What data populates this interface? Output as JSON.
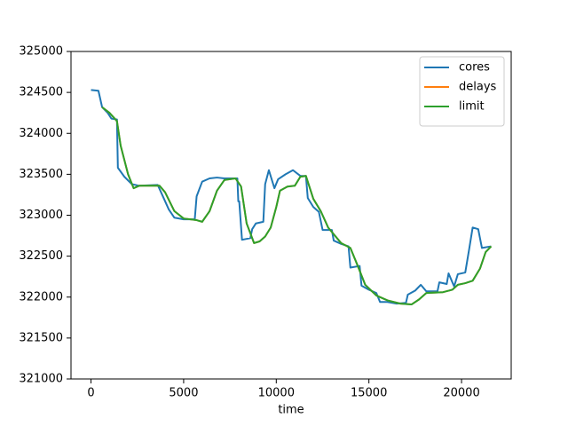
{
  "chart_data": {
    "type": "line",
    "xlabel": "time",
    "xlim": [
      -1080,
      22680
    ],
    "xticks": [
      0,
      5000,
      10000,
      15000,
      20000
    ],
    "ylim": [
      321000,
      325000
    ],
    "yticks": [
      321000,
      321500,
      322000,
      322500,
      323000,
      323500,
      324000,
      324500,
      325000
    ],
    "legend": "upper right",
    "series": [
      {
        "name": "cores",
        "color": "#1f77b4",
        "x": [
          0,
          400,
          600,
          900,
          1100,
          1400,
          1450,
          1800,
          2200,
          2600,
          3600,
          3900,
          4200,
          4500,
          5000,
          5600,
          5700,
          6000,
          6400,
          6800,
          7200,
          7900,
          7950,
          8000,
          8150,
          8600,
          8700,
          8900,
          9300,
          9400,
          9600,
          9900,
          10100,
          10500,
          10900,
          11300,
          11600,
          11700,
          12000,
          12300,
          12500,
          13000,
          13100,
          13500,
          13900,
          14000,
          14500,
          14600,
          15000,
          15400,
          15600,
          16000,
          16500,
          17000,
          17100,
          17500,
          17800,
          18100,
          18700,
          18800,
          19200,
          19300,
          19600,
          19800,
          20200,
          20400,
          20600,
          20900,
          21100,
          21600
        ],
        "values": [
          324530,
          324520,
          324320,
          324250,
          324180,
          324170,
          323580,
          323470,
          323380,
          323360,
          323370,
          323220,
          323070,
          322970,
          322950,
          322950,
          323230,
          323410,
          323450,
          323460,
          323450,
          323450,
          323170,
          323170,
          322700,
          322720,
          322830,
          322900,
          322920,
          323380,
          323550,
          323330,
          323440,
          323500,
          323550,
          323480,
          323480,
          323210,
          323100,
          323040,
          322820,
          322820,
          322690,
          322650,
          322620,
          322360,
          322380,
          322140,
          322090,
          322050,
          321940,
          321940,
          321920,
          321930,
          322030,
          322080,
          322150,
          322070,
          322070,
          322180,
          322160,
          322290,
          322130,
          322280,
          322300,
          322570,
          322850,
          322830,
          322600,
          322620
        ]
      },
      {
        "name": "delays",
        "color": "#ff7f0e",
        "x": [
          600,
          1000,
          1400,
          1600,
          2000,
          2300,
          2600,
          3700,
          4000,
          4500,
          5000,
          5700,
          6000,
          6400,
          6800,
          7200,
          7800,
          8100,
          8400,
          8800,
          9100,
          9400,
          9700,
          10000,
          10200,
          10600,
          11000,
          11300,
          11600,
          12000,
          12400,
          12800,
          13500,
          14000,
          14400,
          14800,
          15400,
          16000,
          16700,
          17300,
          17700,
          18100,
          19000,
          19500,
          19800,
          20200,
          20600,
          21000,
          21300,
          21600
        ],
        "values": [
          324320,
          324250,
          324150,
          323850,
          323500,
          323330,
          323360,
          323360,
          323280,
          323050,
          322960,
          322940,
          322920,
          323050,
          323300,
          323430,
          323450,
          323350,
          322900,
          322660,
          322680,
          322740,
          322850,
          323100,
          323300,
          323350,
          323360,
          323470,
          323480,
          323200,
          323050,
          322850,
          322660,
          322600,
          322380,
          322150,
          322020,
          321960,
          321920,
          321910,
          321970,
          322050,
          322060,
          322090,
          322150,
          322170,
          322200,
          322350,
          322550,
          322620
        ]
      },
      {
        "name": "limit",
        "color": "#2ca02c",
        "x": [
          600,
          1000,
          1400,
          1600,
          2000,
          2300,
          2600,
          3700,
          4000,
          4500,
          5000,
          5700,
          6000,
          6400,
          6800,
          7200,
          7800,
          8100,
          8400,
          8800,
          9100,
          9400,
          9700,
          10000,
          10200,
          10600,
          11000,
          11300,
          11600,
          12000,
          12400,
          12800,
          13500,
          14000,
          14400,
          14800,
          15400,
          16000,
          16700,
          17300,
          17700,
          18100,
          19000,
          19500,
          19800,
          20200,
          20600,
          21000,
          21300,
          21600
        ],
        "values": [
          324320,
          324250,
          324150,
          323850,
          323500,
          323330,
          323360,
          323360,
          323280,
          323050,
          322960,
          322940,
          322920,
          323050,
          323300,
          323430,
          323450,
          323350,
          322900,
          322660,
          322680,
          322740,
          322850,
          323100,
          323300,
          323350,
          323360,
          323470,
          323480,
          323200,
          323050,
          322850,
          322660,
          322600,
          322380,
          322150,
          322020,
          321960,
          321920,
          321910,
          321970,
          322050,
          322060,
          322090,
          322150,
          322170,
          322200,
          322350,
          322550,
          322620
        ]
      }
    ]
  }
}
